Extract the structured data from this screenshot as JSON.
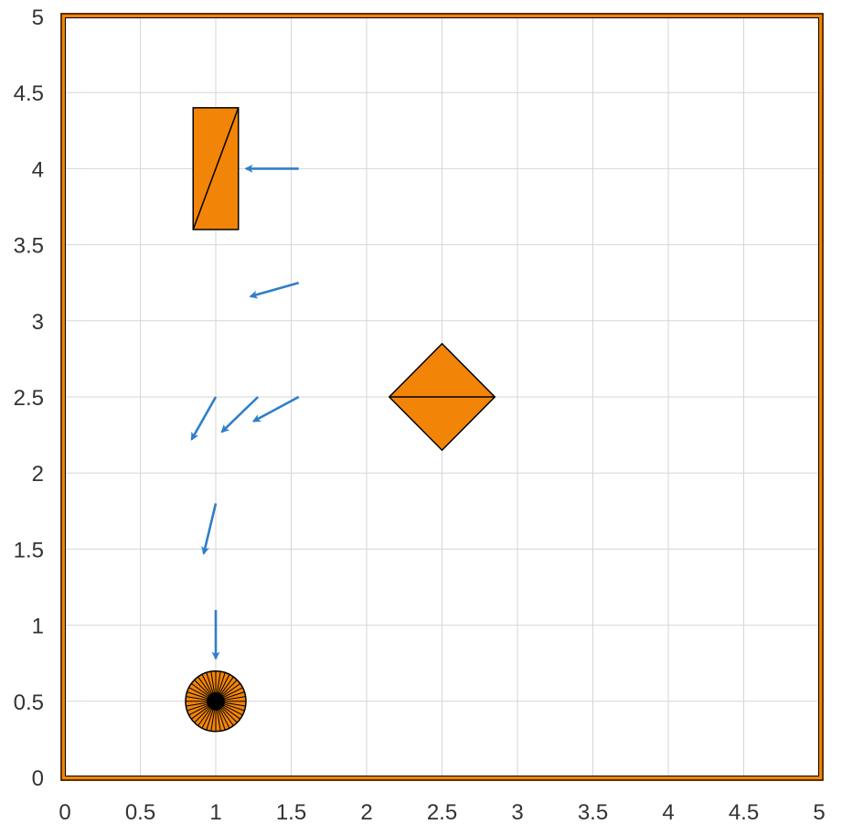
{
  "chart_data": {
    "type": "scatter",
    "title": "",
    "xlabel": "",
    "ylabel": "",
    "xlim": [
      0,
      5
    ],
    "ylim": [
      0,
      5
    ],
    "grid": true,
    "x_ticks": [
      "0",
      "0.5",
      "1",
      "1.5",
      "2",
      "2.5",
      "3",
      "3.5",
      "4",
      "4.5",
      "5"
    ],
    "y_ticks": [
      "0",
      "0.5",
      "1",
      "1.5",
      "2",
      "2.5",
      "3",
      "3.5",
      "4",
      "4.5",
      "5"
    ],
    "arrows": [
      {
        "x": [
          1.55,
          1.2
        ],
        "y": [
          4.0,
          4.0
        ]
      },
      {
        "x": [
          1.55,
          1.23
        ],
        "y": [
          3.25,
          3.16
        ]
      },
      {
        "x": [
          1.55,
          1.25
        ],
        "y": [
          2.5,
          2.34
        ]
      },
      {
        "x": [
          1.28,
          1.04
        ],
        "y": [
          2.5,
          2.27
        ]
      },
      {
        "x": [
          1.0,
          0.84
        ],
        "y": [
          2.5,
          2.22
        ]
      },
      {
        "x": [
          1.0,
          0.92
        ],
        "y": [
          1.8,
          1.47
        ]
      },
      {
        "x": [
          1.0,
          1.0
        ],
        "y": [
          1.1,
          0.78
        ]
      }
    ],
    "obstacles": [
      {
        "shape": "rectangle",
        "x_range": [
          0.85,
          1.15
        ],
        "y_range": [
          3.6,
          4.4
        ]
      },
      {
        "shape": "diamond",
        "center": [
          2.5,
          2.5
        ],
        "half_width": 0.35,
        "half_height": 0.35
      },
      {
        "shape": "circle",
        "center": [
          1.0,
          0.5
        ],
        "radius": 0.2
      }
    ],
    "boundary": {
      "x_range": [
        0,
        5
      ],
      "y_range": [
        0,
        5
      ]
    },
    "colors": {
      "arrow": "#2e7fc8",
      "obstacle_fill": "#f28407",
      "obstacle_edge": "#000000",
      "boundary": "#f28407",
      "grid": "#d6d6d6",
      "tick_text": "#333333"
    }
  }
}
